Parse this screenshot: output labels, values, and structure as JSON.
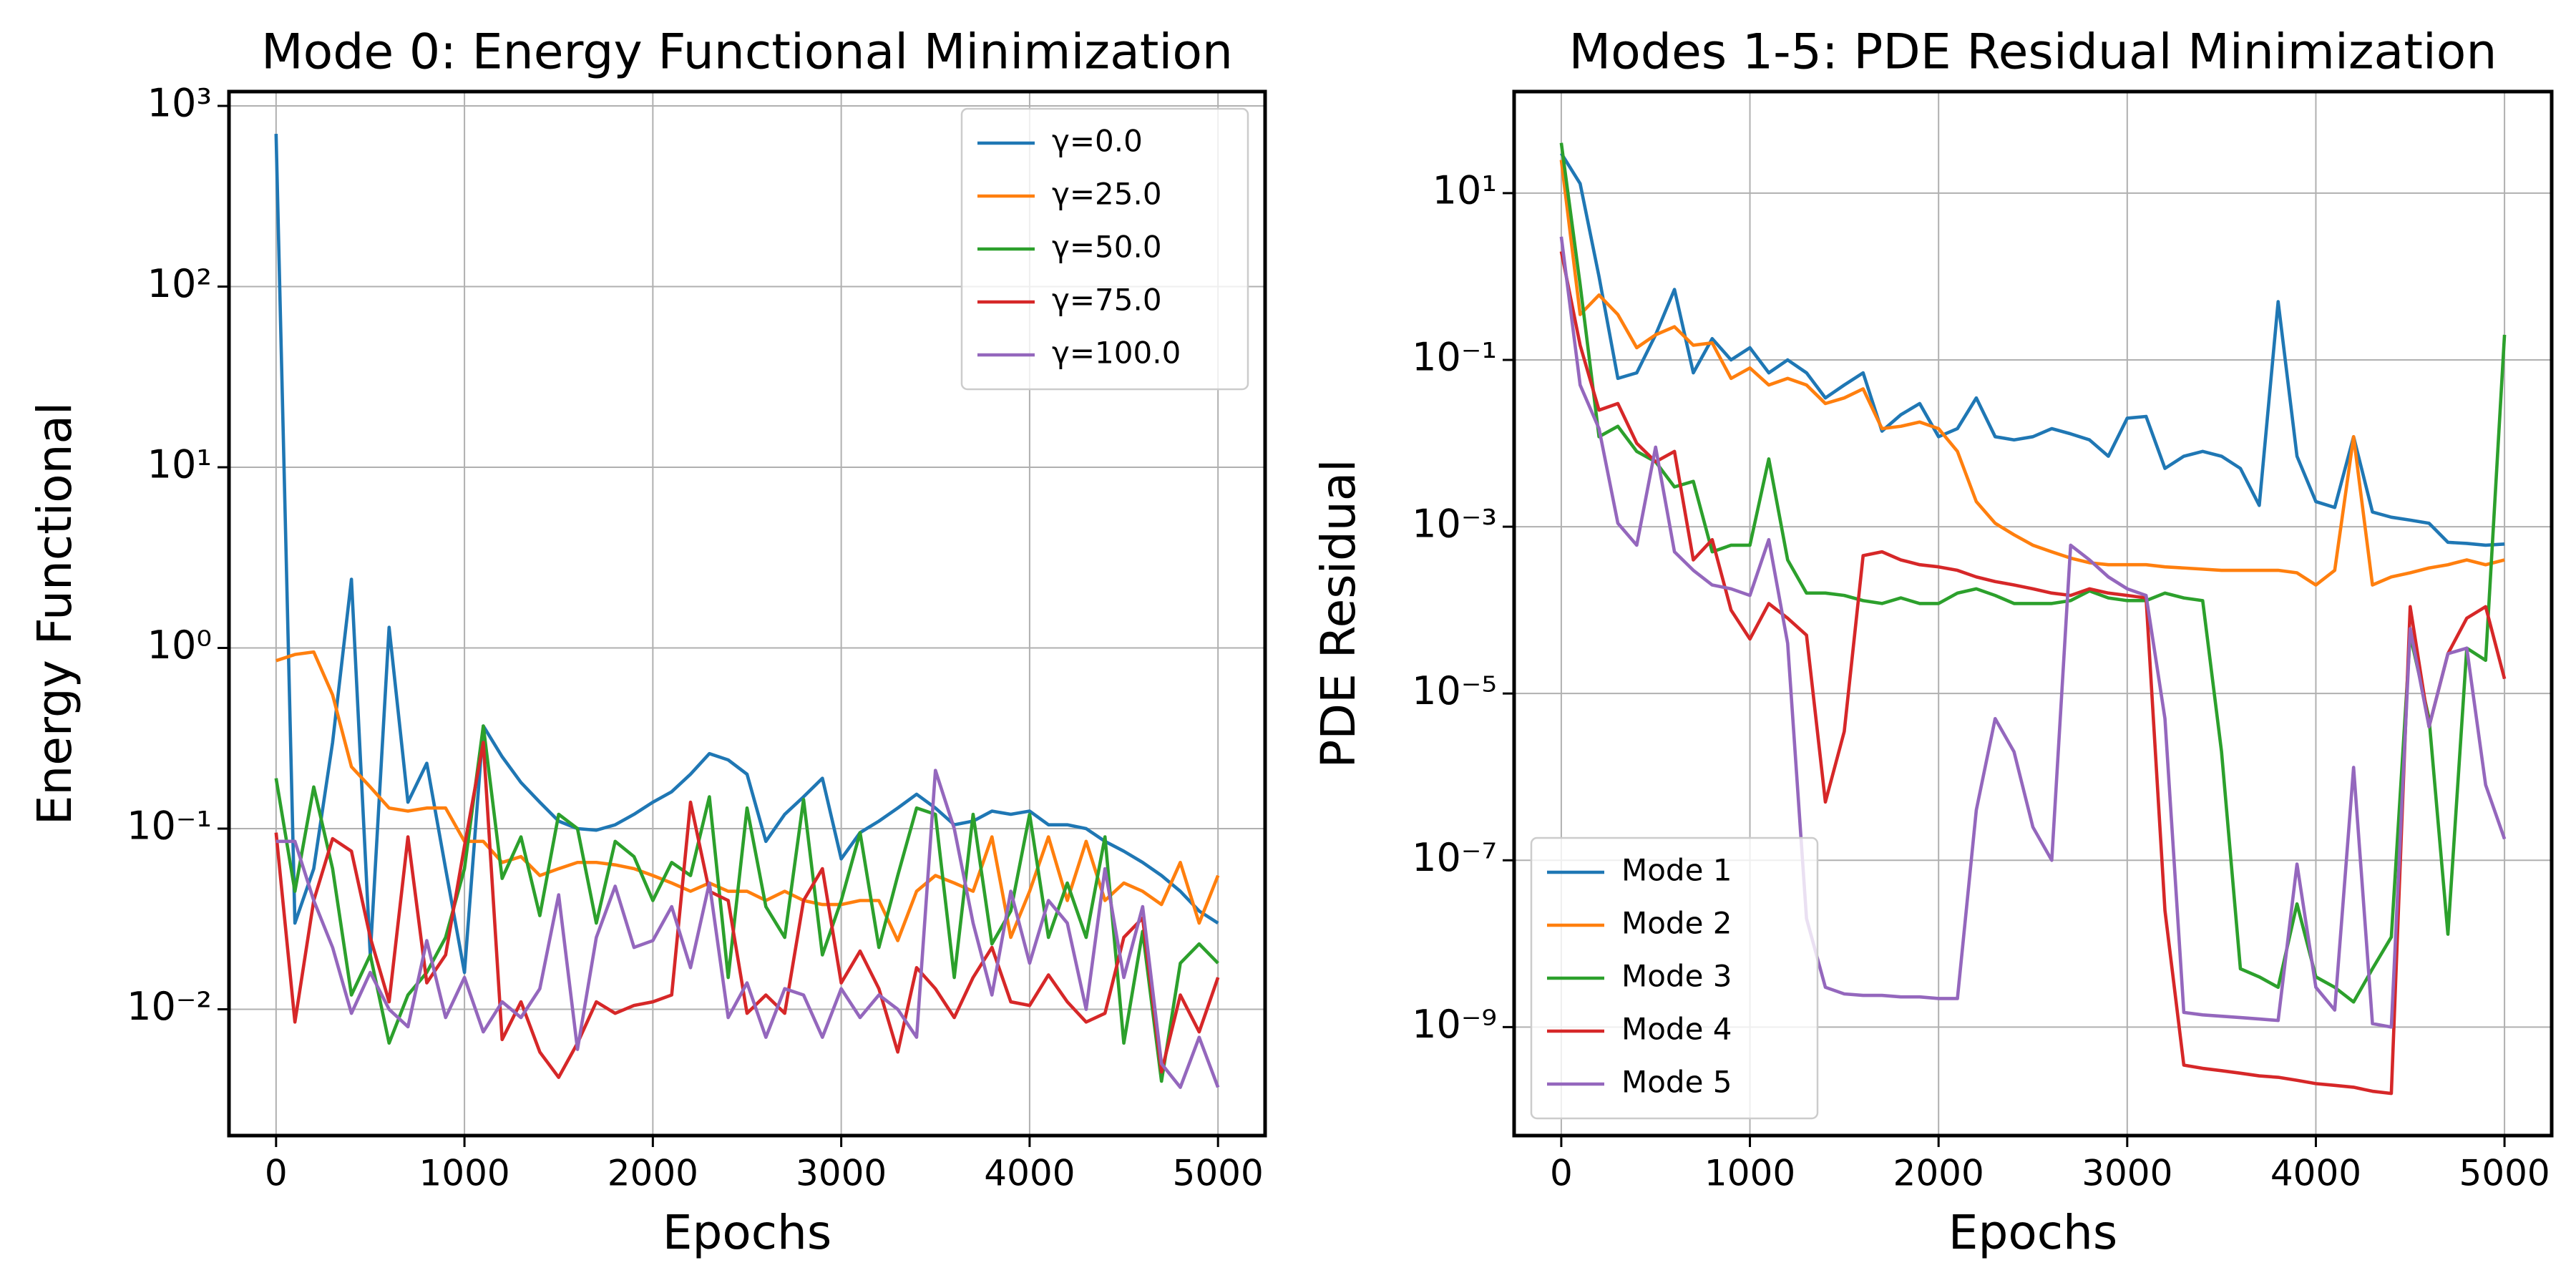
{
  "chart_data": [
    {
      "type": "line",
      "title": "Mode 0: Energy Functional Minimization",
      "xlabel": "Epochs",
      "ylabel": "Energy Functional",
      "x": [
        0,
        100,
        200,
        300,
        400,
        500,
        600,
        700,
        800,
        900,
        1000,
        1100,
        1200,
        1300,
        1400,
        1500,
        1600,
        1700,
        1800,
        1900,
        2000,
        2100,
        2200,
        2300,
        2400,
        2500,
        2600,
        2700,
        2800,
        2900,
        3000,
        3100,
        3200,
        3300,
        3400,
        3500,
        3600,
        3700,
        3800,
        3900,
        4000,
        4100,
        4200,
        4300,
        4400,
        4500,
        4600,
        4700,
        4800,
        4900,
        5000
      ],
      "series": [
        {
          "name": "γ=0.0",
          "color": "#1f77b4",
          "values": [
            700,
            0.03,
            0.06,
            0.3,
            2.4,
            0.02,
            1.3,
            0.14,
            0.23,
            0.06,
            0.016,
            0.37,
            0.25,
            0.18,
            0.14,
            0.11,
            0.1,
            0.098,
            0.105,
            0.12,
            0.14,
            0.16,
            0.2,
            0.26,
            0.24,
            0.2,
            0.085,
            0.12,
            0.15,
            0.19,
            0.068,
            0.095,
            0.11,
            0.13,
            0.155,
            0.13,
            0.105,
            0.11,
            0.125,
            0.12,
            0.125,
            0.105,
            0.105,
            0.1,
            0.085,
            0.075,
            0.065,
            0.055,
            0.045,
            0.035,
            0.03
          ]
        },
        {
          "name": "γ=25.0",
          "color": "#ff7f0e",
          "values": [
            0.85,
            0.92,
            0.95,
            0.55,
            0.22,
            0.17,
            0.13,
            0.125,
            0.13,
            0.13,
            0.085,
            0.085,
            0.065,
            0.07,
            0.055,
            0.06,
            0.065,
            0.065,
            0.063,
            0.06,
            0.055,
            0.05,
            0.045,
            0.05,
            0.045,
            0.045,
            0.04,
            0.045,
            0.04,
            0.038,
            0.038,
            0.04,
            0.04,
            0.024,
            0.045,
            0.055,
            0.05,
            0.045,
            0.09,
            0.025,
            0.045,
            0.09,
            0.04,
            0.085,
            0.04,
            0.05,
            0.045,
            0.038,
            0.065,
            0.03,
            0.055
          ]
        },
        {
          "name": "γ=50.0",
          "color": "#2ca02c",
          "values": [
            0.19,
            0.045,
            0.17,
            0.06,
            0.012,
            0.02,
            0.0065,
            0.012,
            0.016,
            0.025,
            0.06,
            0.37,
            0.053,
            0.09,
            0.033,
            0.12,
            0.1,
            0.03,
            0.085,
            0.07,
            0.04,
            0.065,
            0.055,
            0.15,
            0.015,
            0.13,
            0.037,
            0.025,
            0.145,
            0.02,
            0.04,
            0.095,
            0.022,
            0.055,
            0.13,
            0.12,
            0.015,
            0.12,
            0.023,
            0.035,
            0.12,
            0.025,
            0.05,
            0.025,
            0.09,
            0.0065,
            0.027,
            0.004,
            0.018,
            0.023,
            0.018
          ]
        },
        {
          "name": "γ=75.0",
          "color": "#d62728",
          "values": [
            0.095,
            0.0085,
            0.04,
            0.088,
            0.075,
            0.025,
            0.011,
            0.09,
            0.014,
            0.02,
            0.08,
            0.3,
            0.0068,
            0.011,
            0.0058,
            0.0042,
            0.0065,
            0.011,
            0.0095,
            0.0105,
            0.011,
            0.012,
            0.14,
            0.045,
            0.04,
            0.0095,
            0.012,
            0.0095,
            0.04,
            0.06,
            0.014,
            0.021,
            0.013,
            0.0058,
            0.017,
            0.013,
            0.009,
            0.015,
            0.022,
            0.011,
            0.0105,
            0.0155,
            0.011,
            0.0085,
            0.0095,
            0.025,
            0.032,
            0.0045,
            0.012,
            0.0075,
            0.015
          ]
        },
        {
          "name": "γ=100.0",
          "color": "#9467bd",
          "values": [
            0.085,
            0.085,
            0.04,
            0.022,
            0.0095,
            0.016,
            0.01,
            0.008,
            0.024,
            0.009,
            0.015,
            0.0075,
            0.011,
            0.009,
            0.013,
            0.043,
            0.006,
            0.025,
            0.048,
            0.022,
            0.024,
            0.037,
            0.017,
            0.05,
            0.009,
            0.014,
            0.007,
            0.013,
            0.012,
            0.007,
            0.013,
            0.009,
            0.012,
            0.01,
            0.007,
            0.21,
            0.1,
            0.03,
            0.012,
            0.045,
            0.018,
            0.04,
            0.03,
            0.01,
            0.06,
            0.015,
            0.037,
            0.005,
            0.0037,
            0.007,
            0.0037
          ]
        }
      ],
      "xlim": [
        -250,
        5250
      ],
      "xticks": [
        0,
        1000,
        2000,
        3000,
        4000,
        5000
      ],
      "ylim": [
        0.002,
        1200
      ],
      "log_y": true,
      "yticks": [
        {
          "value": 0.01,
          "label": "10⁻²"
        },
        {
          "value": 0.1,
          "label": "10⁻¹"
        },
        {
          "value": 1,
          "label": "10⁰"
        },
        {
          "value": 10,
          "label": "10¹"
        },
        {
          "value": 100,
          "label": "10²"
        },
        {
          "value": 1000,
          "label": "10³"
        }
      ],
      "grid": true,
      "legend": "upper right"
    },
    {
      "type": "line",
      "title": "Modes 1-5: PDE Residual Minimization",
      "xlabel": "Epochs",
      "ylabel": "PDE Residual",
      "x": [
        0,
        100,
        200,
        300,
        400,
        500,
        600,
        700,
        800,
        900,
        1000,
        1100,
        1200,
        1300,
        1400,
        1500,
        1600,
        1700,
        1800,
        1900,
        2000,
        2100,
        2200,
        2300,
        2400,
        2500,
        2600,
        2700,
        2800,
        2900,
        3000,
        3100,
        3200,
        3300,
        3400,
        3500,
        3600,
        3700,
        3800,
        3900,
        4000,
        4100,
        4200,
        4300,
        4400,
        4500,
        4600,
        4700,
        4800,
        4900,
        5000
      ],
      "series": [
        {
          "name": "Mode 1",
          "color": "#1f77b4",
          "values": [
            30,
            13,
            1,
            0.06,
            0.07,
            0.2,
            0.7,
            0.07,
            0.18,
            0.1,
            0.14,
            0.07,
            0.1,
            0.07,
            0.035,
            0.05,
            0.07,
            0.014,
            0.022,
            0.03,
            0.012,
            0.015,
            0.035,
            0.012,
            0.011,
            0.012,
            0.015,
            0.013,
            0.011,
            0.007,
            0.02,
            0.021,
            0.005,
            0.007,
            0.008,
            0.007,
            0.005,
            0.0018,
            0.5,
            0.007,
            0.002,
            0.0017,
            0.012,
            0.0015,
            0.0013,
            0.0012,
            0.0011,
            0.00065,
            0.00063,
            0.0006,
            0.00062
          ]
        },
        {
          "name": "Mode 2",
          "color": "#ff7f0e",
          "values": [
            25,
            0.35,
            0.6,
            0.35,
            0.14,
            0.2,
            0.25,
            0.15,
            0.16,
            0.06,
            0.08,
            0.05,
            0.06,
            0.05,
            0.03,
            0.035,
            0.045,
            0.015,
            0.016,
            0.018,
            0.015,
            0.008,
            0.002,
            0.0011,
            0.0008,
            0.0006,
            0.0005,
            0.00042,
            0.00037,
            0.00035,
            0.00035,
            0.00035,
            0.00033,
            0.00032,
            0.00031,
            0.0003,
            0.0003,
            0.0003,
            0.0003,
            0.00028,
            0.0002,
            0.0003,
            0.012,
            0.0002,
            0.00025,
            0.00028,
            0.00032,
            0.00035,
            0.0004,
            0.00035,
            0.0004
          ]
        },
        {
          "name": "Mode 3",
          "color": "#2ca02c",
          "values": [
            40,
            0.8,
            0.012,
            0.016,
            0.008,
            0.006,
            0.003,
            0.0035,
            0.0005,
            0.0006,
            0.0006,
            0.0065,
            0.0004,
            0.00016,
            0.00016,
            0.00015,
            0.00013,
            0.00012,
            0.00014,
            0.00012,
            0.00012,
            0.00016,
            0.00018,
            0.00015,
            0.00012,
            0.00012,
            0.00012,
            0.00013,
            0.00017,
            0.00014,
            0.00013,
            0.00013,
            0.00016,
            0.00014,
            0.00013,
            2e-06,
            5e-09,
            4e-09,
            3e-09,
            3e-08,
            4e-09,
            3e-09,
            2e-09,
            5e-09,
            1.2e-08,
            5e-05,
            5e-06,
            1.3e-08,
            3.5e-05,
            2.5e-05,
            0.2
          ]
        },
        {
          "name": "Mode 4",
          "color": "#d62728",
          "values": [
            2,
            0.15,
            0.025,
            0.03,
            0.01,
            0.006,
            0.008,
            0.0004,
            0.0007,
            0.0001,
            4.5e-05,
            0.00012,
            8e-05,
            5e-05,
            5e-07,
            3.5e-06,
            0.00045,
            0.0005,
            0.0004,
            0.00035,
            0.00033,
            0.0003,
            0.00025,
            0.00022,
            0.0002,
            0.00018,
            0.00016,
            0.00015,
            0.00018,
            0.00016,
            0.00015,
            0.00014,
            2.5e-08,
            3.5e-10,
            3.2e-10,
            3e-10,
            2.8e-10,
            2.6e-10,
            2.5e-10,
            2.3e-10,
            2.1e-10,
            2e-10,
            1.9e-10,
            1.7e-10,
            1.6e-10,
            0.00011,
            4e-06,
            3e-05,
            8e-05,
            0.00011,
            1.5e-05
          ]
        },
        {
          "name": "Mode 5",
          "color": "#9467bd",
          "values": [
            3,
            0.05,
            0.015,
            0.0011,
            0.0006,
            0.009,
            0.0005,
            0.0003,
            0.0002,
            0.00018,
            0.00015,
            0.0007,
            4e-05,
            2e-08,
            3e-09,
            2.5e-09,
            2.4e-09,
            2.4e-09,
            2.3e-09,
            2.3e-09,
            2.2e-09,
            2.2e-09,
            4e-07,
            5e-06,
            2e-06,
            2.5e-07,
            1e-07,
            0.0006,
            0.0004,
            0.00025,
            0.00018,
            0.00015,
            5e-06,
            1.5e-09,
            1.4e-09,
            1.35e-09,
            1.3e-09,
            1.25e-09,
            1.2e-09,
            9e-08,
            3e-09,
            1.6e-09,
            1.3e-06,
            1.1e-09,
            1e-09,
            6e-05,
            4e-06,
            3e-05,
            3.5e-05,
            8e-07,
            1.8e-07
          ]
        }
      ],
      "xlim": [
        -250,
        5250
      ],
      "xticks": [
        0,
        1000,
        2000,
        3000,
        4000,
        5000
      ],
      "ylim": [
        5e-11,
        165
      ],
      "log_y": true,
      "yticks": [
        {
          "value": 1e-09,
          "label": "10⁻⁹"
        },
        {
          "value": 1e-07,
          "label": "10⁻⁷"
        },
        {
          "value": 1e-05,
          "label": "10⁻⁵"
        },
        {
          "value": 0.001,
          "label": "10⁻³"
        },
        {
          "value": 0.1,
          "label": "10⁻¹"
        },
        {
          "value": 10,
          "label": "10¹"
        }
      ],
      "grid": true,
      "legend": "lower left"
    }
  ]
}
